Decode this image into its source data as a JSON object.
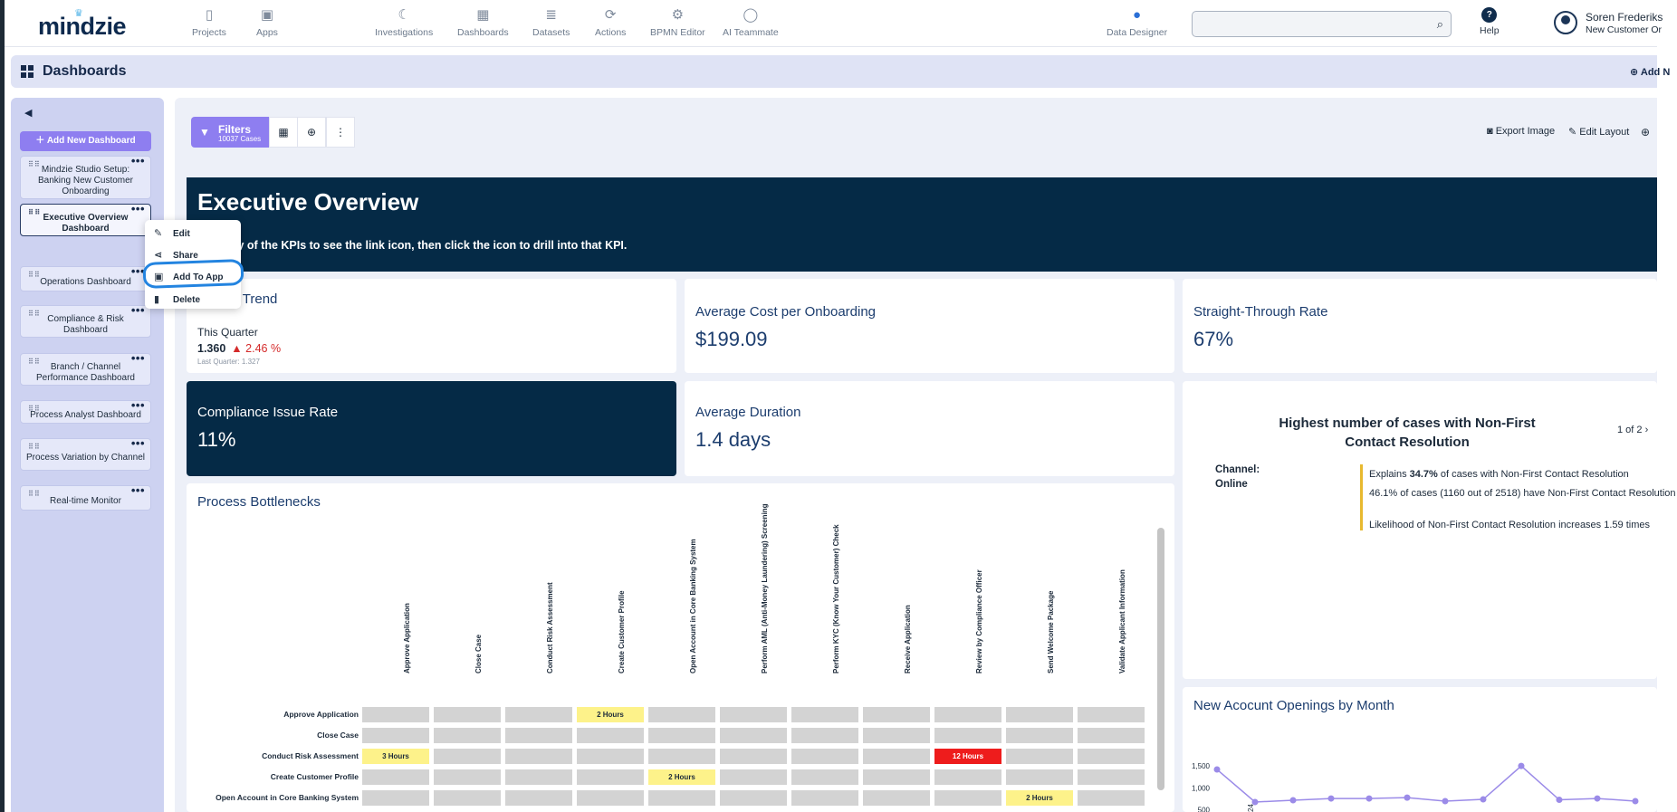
{
  "app": {
    "logo": "mindzie",
    "nav": [
      {
        "label": "Projects",
        "icon": "document-icon"
      },
      {
        "label": "Apps",
        "icon": "apps-icon"
      },
      {
        "label": "Investigations",
        "icon": "investigations-icon"
      },
      {
        "label": "Dashboards",
        "icon": "dashboards-icon"
      },
      {
        "label": "Datasets",
        "icon": "datasets-icon"
      },
      {
        "label": "Actions",
        "icon": "actions-icon"
      },
      {
        "label": "BPMN Editor",
        "icon": "bpmn-icon"
      },
      {
        "label": "AI Teammate",
        "icon": "chat-icon"
      },
      {
        "label": "Data Designer",
        "icon": "data-designer-icon"
      }
    ],
    "search": {
      "value": "",
      "placeholder": ""
    },
    "help_label": "Help",
    "user": {
      "name": "Soren Frederiks",
      "subtitle": "New Customer Or"
    }
  },
  "header": {
    "title": "Dashboards",
    "add_new": "Add N"
  },
  "sidebar": {
    "add_button": "Add New Dashboard",
    "dashboards": [
      "Mindzie Studio Setup: Banking New Customer Onboarding",
      "Executive Overview Dashboard",
      "Operations Dashboard",
      "Compliance & Risk Dashboard",
      "Branch / Channel Performance Dashboard",
      "Process Analyst Dashboard",
      "Process Variation by Channel",
      "Real-time Monitor"
    ],
    "active_index": 1
  },
  "context_menu": {
    "items": [
      {
        "label": "Edit",
        "icon": "pencil-icon"
      },
      {
        "label": "Share",
        "icon": "share-icon"
      },
      {
        "label": "Add To App",
        "icon": "add-to-app-icon"
      },
      {
        "label": "Delete",
        "icon": "trash-icon"
      }
    ]
  },
  "toolbar": {
    "filters_label": "Filters",
    "filters_count": "10037 Cases",
    "export_image": "Export Image",
    "edit_layout": "Edit Layout"
  },
  "banner": {
    "title": "Executive Overview",
    "subtitle": "over any of the KPIs to see the link icon, then click the icon to drill into that KPI."
  },
  "kpis": {
    "duration_trend": {
      "title": "uration Trend",
      "period": "This Quarter",
      "value": "1.360",
      "change": "2.46 %",
      "last_quarter": "Last Quarter:   1.327"
    },
    "avg_cost": {
      "title": "Average Cost per Onboarding",
      "value": "$199.09"
    },
    "stp": {
      "title": "Straight-Through Rate",
      "value": "67%"
    },
    "compliance": {
      "title": "Compliance Issue Rate",
      "value": "11%"
    },
    "avg_duration": {
      "title": "Average Duration",
      "value": "1.4 days"
    }
  },
  "insight": {
    "title": "Highest number of cases with Non-First Contact Resolution",
    "page": "1 of 2",
    "channel_label": "Channel:",
    "channel_value": "Online",
    "line1_pre": "Explains ",
    "line1_bold": "34.7%",
    "line1_post": " of cases with Non-First Contact Resolution",
    "line2": "46.1% of cases (1160 out of 2518) have Non-First Contact Resolution",
    "line3": "Likelihood of Non-First Contact Resolution increases 1.59 times"
  },
  "bottlenecks": {
    "title": "Process Bottlenecks",
    "columns": [
      "Approve Application",
      "Close Case",
      "Conduct Risk Assessment",
      "Create Customer Profile",
      "Open Account in Core Banking System",
      "Perform AML (Anti-Money Laundering) Screening",
      "Perform KYC (Know Your Customer) Check",
      "Receive Application",
      "Review by Compliance Officer",
      "Send Welcome Package",
      "Validate Applicant Information"
    ],
    "rows": [
      {
        "label": "Approve Application",
        "cells": [
          {
            "c": 3,
            "text": "2 Hours",
            "level": "y"
          }
        ]
      },
      {
        "label": "Close Case",
        "cells": []
      },
      {
        "label": "Conduct Risk Assessment",
        "cells": [
          {
            "c": 0,
            "text": "3 Hours",
            "level": "y"
          },
          {
            "c": 8,
            "text": "12 Hours",
            "level": "r"
          }
        ]
      },
      {
        "label": "Create Customer Profile",
        "cells": [
          {
            "c": 4,
            "text": "2 Hours",
            "level": "y"
          }
        ]
      },
      {
        "label": "Open Account in Core Banking System",
        "cells": [
          {
            "c": 9,
            "text": "2 Hours",
            "level": "y"
          }
        ]
      }
    ],
    "colors": {
      "empty": "#d3d3d3",
      "warn": "#fdf28a",
      "critical": "#ee1c1c"
    }
  },
  "chart_data": {
    "type": "line",
    "title": "New Acocunt Openings by Month",
    "ylim": [
      0,
      1750
    ],
    "yticks": [
      "1,500",
      "1,000",
      "500"
    ],
    "ytick_values": [
      1500,
      1000,
      500
    ],
    "x_tick_first": "24",
    "series": [
      {
        "values": [
          1420,
          680,
          720,
          760,
          760,
          780,
          700,
          740,
          1500,
          730,
          760,
          700
        ]
      }
    ],
    "color": "#9b8be8"
  }
}
